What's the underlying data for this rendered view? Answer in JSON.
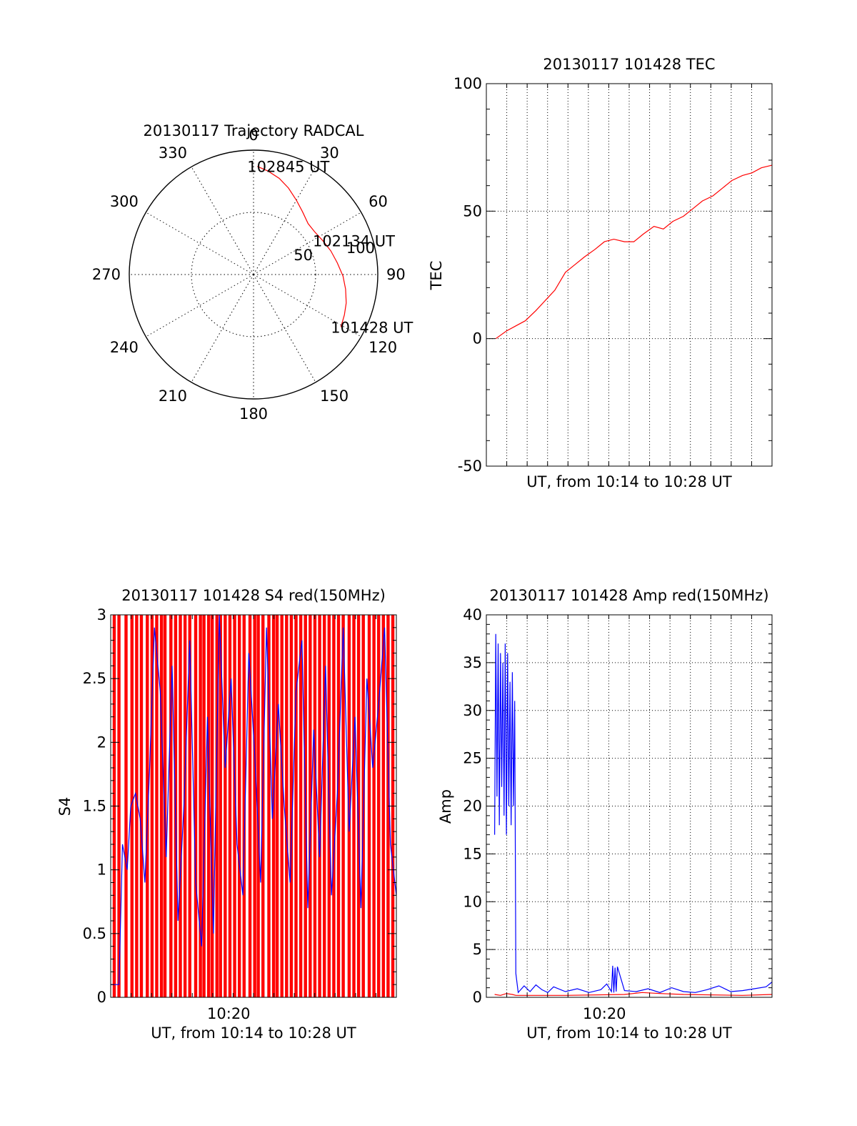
{
  "figure": {
    "red_color": "#ff0000",
    "blue_color": "#0000ff"
  },
  "chart_data": [
    {
      "id": "trajectory",
      "type": "polar",
      "title": "20130117 Trajectory RADCAL",
      "azimuth_labels": [
        "0",
        "30",
        "60",
        "90",
        "120",
        "150",
        "180",
        "210",
        "240",
        "270",
        "300",
        "330"
      ],
      "radial_labels": [
        "50",
        "100"
      ],
      "radial_max": 100,
      "series": [
        {
          "color": "#ff0000",
          "points": [
            {
              "az": 2,
              "r": 87
            },
            {
              "az": 8,
              "r": 84
            },
            {
              "az": 15,
              "r": 80
            },
            {
              "az": 22,
              "r": 75
            },
            {
              "az": 30,
              "r": 69
            },
            {
              "az": 38,
              "r": 64
            },
            {
              "az": 47,
              "r": 60
            },
            {
              "az": 55,
              "r": 60
            },
            {
              "az": 64,
              "r": 62
            },
            {
              "az": 73,
              "r": 65
            },
            {
              "az": 82,
              "r": 68
            },
            {
              "az": 91,
              "r": 72
            },
            {
              "az": 99,
              "r": 75
            },
            {
              "az": 107,
              "r": 78
            },
            {
              "az": 114,
              "r": 80
            },
            {
              "az": 121,
              "r": 82
            }
          ]
        }
      ],
      "annotations": [
        {
          "text": "102845 UT",
          "az": 2,
          "r": 87
        },
        {
          "text": "102134 UT",
          "az": 64,
          "r": 62
        },
        {
          "text": "101428 UT",
          "az": 121,
          "r": 82
        }
      ],
      "grid": true
    },
    {
      "id": "tec",
      "type": "line",
      "title": "20130117 101428 TEC",
      "xlabel": "UT, from 10:14 to 10:28 UT",
      "ylabel": "TEC",
      "xlim": [
        10.233,
        10.475
      ],
      "ylim": [
        -50,
        100
      ],
      "yticks": [
        "-50",
        "0",
        "50",
        "100"
      ],
      "grid": true,
      "series": [
        {
          "color": "#ff0000",
          "x": [
            10.241,
            10.25,
            10.258,
            10.266,
            10.275,
            10.283,
            10.291,
            10.3,
            10.308,
            10.316,
            10.325,
            10.333,
            10.341,
            10.35,
            10.358,
            10.366,
            10.375,
            10.383,
            10.391,
            10.4,
            10.408,
            10.416,
            10.425,
            10.433,
            10.441,
            10.45,
            10.458,
            10.466,
            10.475
          ],
          "y": [
            0,
            3,
            5,
            7,
            11,
            15,
            19,
            26,
            29,
            32,
            35,
            38,
            39,
            38,
            38,
            41,
            44,
            43,
            46,
            48,
            51,
            54,
            56,
            59,
            62,
            64,
            65,
            67,
            68
          ]
        }
      ]
    },
    {
      "id": "s4",
      "type": "line",
      "title": "20130117 101428 S4 red(150MHz)",
      "xlabel": "UT, from 10:14 to 10:28 UT",
      "ylabel": "S4",
      "xlim": [
        10.233,
        10.475
      ],
      "ylim": [
        0,
        3
      ],
      "xticks": [
        {
          "value": 10.333,
          "label": "10:20"
        }
      ],
      "yticks": [
        "0",
        "0.5",
        "1",
        "1.5",
        "2",
        "2.5",
        "3"
      ],
      "grid": false,
      "series": [
        {
          "color": "#0000ff",
          "x": [
            10.233,
            10.24,
            10.243,
            10.247,
            10.25,
            10.254,
            10.258,
            10.262,
            10.266,
            10.27,
            10.275,
            10.28,
            10.285,
            10.29,
            10.295,
            10.3,
            10.305,
            10.31,
            10.315,
            10.32,
            10.325,
            10.33,
            10.335,
            10.34,
            10.345,
            10.35,
            10.355,
            10.36,
            10.365,
            10.37,
            10.375,
            10.38,
            10.385,
            10.39,
            10.395,
            10.4,
            10.405,
            10.41,
            10.415,
            10.42,
            10.425,
            10.43,
            10.435,
            10.44,
            10.445,
            10.45,
            10.455,
            10.46,
            10.465,
            10.47,
            10.475
          ],
          "y": [
            0.1,
            0.1,
            1.2,
            1.0,
            1.5,
            1.6,
            1.4,
            0.9,
            1.8,
            2.9,
            2.4,
            1.1,
            2.6,
            0.6,
            1.5,
            2.8,
            0.9,
            0.4,
            2.2,
            0.5,
            3.0,
            1.8,
            2.5,
            1.2,
            0.8,
            2.7,
            1.9,
            0.9,
            2.9,
            1.4,
            2.3,
            1.5,
            0.9,
            2.4,
            2.8,
            0.7,
            2.1,
            1.1,
            2.6,
            0.8,
            1.6,
            2.9,
            1.3,
            2.2,
            0.7,
            2.5,
            1.8,
            2.3,
            2.9,
            1.2,
            0.8
          ]
        }
      ],
      "red_columns": [
        10.236,
        10.24,
        10.246,
        10.251,
        10.255,
        10.259,
        10.264,
        10.268,
        10.272,
        10.276,
        10.279,
        10.284,
        10.288,
        10.292,
        10.296,
        10.3,
        10.305,
        10.309,
        10.312,
        10.316,
        10.319,
        10.323,
        10.326,
        10.33,
        10.334,
        10.338,
        10.342,
        10.346,
        10.351,
        10.355,
        10.358,
        10.362,
        10.367,
        10.371,
        10.374,
        10.378,
        10.382,
        10.386,
        10.39,
        10.394,
        10.398,
        10.402,
        10.406,
        10.41,
        10.414,
        10.418,
        10.422,
        10.426,
        10.43,
        10.435,
        10.439,
        10.443,
        10.447,
        10.452,
        10.456,
        10.46,
        10.464,
        10.468,
        10.472
      ]
    },
    {
      "id": "amp",
      "type": "line",
      "title": "20130117 101428 Amp red(150MHz)",
      "xlabel": "UT, from 10:14 to 10:28 UT",
      "ylabel": "Amp",
      "xlim": [
        10.233,
        10.475
      ],
      "ylim": [
        0,
        40
      ],
      "xticks": [
        {
          "value": 10.333,
          "label": "10:20"
        }
      ],
      "yticks": [
        "0",
        "5",
        "10",
        "15",
        "20",
        "25",
        "30",
        "35",
        "40"
      ],
      "grid": true,
      "series": [
        {
          "color": "#0000ff",
          "x": [
            10.24,
            10.241,
            10.242,
            10.243,
            10.244,
            10.245,
            10.246,
            10.247,
            10.248,
            10.249,
            10.25,
            10.251,
            10.252,
            10.253,
            10.254,
            10.255,
            10.256,
            10.257,
            10.258,
            10.26,
            10.265,
            10.27,
            10.275,
            10.28,
            10.285,
            10.29,
            10.3,
            10.31,
            10.32,
            10.33,
            10.335,
            10.339,
            10.34,
            10.341,
            10.342,
            10.343,
            10.344,
            10.35,
            10.36,
            10.37,
            10.38,
            10.39,
            10.4,
            10.41,
            10.42,
            10.43,
            10.44,
            10.45,
            10.46,
            10.47,
            10.475
          ],
          "y": [
            17,
            38,
            21,
            37,
            18,
            36,
            22,
            35,
            19,
            37,
            17,
            36,
            20,
            33,
            18,
            34,
            20,
            31,
            2.5,
            0.5,
            1.2,
            0.6,
            1.3,
            0.8,
            0.5,
            1.1,
            0.6,
            0.9,
            0.5,
            0.8,
            1.4,
            0.6,
            3.3,
            0.5,
            3.1,
            0.6,
            3.2,
            0.7,
            0.6,
            0.9,
            0.5,
            1.0,
            0.6,
            0.5,
            0.8,
            1.2,
            0.6,
            0.7,
            0.9,
            1.1,
            1.6
          ]
        },
        {
          "color": "#ff0000",
          "x": [
            10.24,
            10.245,
            10.25,
            10.255,
            10.258,
            10.3,
            10.35,
            10.365,
            10.38,
            10.4,
            10.45,
            10.475
          ],
          "y": [
            0.3,
            0.2,
            0.4,
            0.3,
            0.2,
            0.2,
            0.3,
            0.5,
            0.4,
            0.3,
            0.2,
            0.3
          ]
        }
      ]
    }
  ]
}
